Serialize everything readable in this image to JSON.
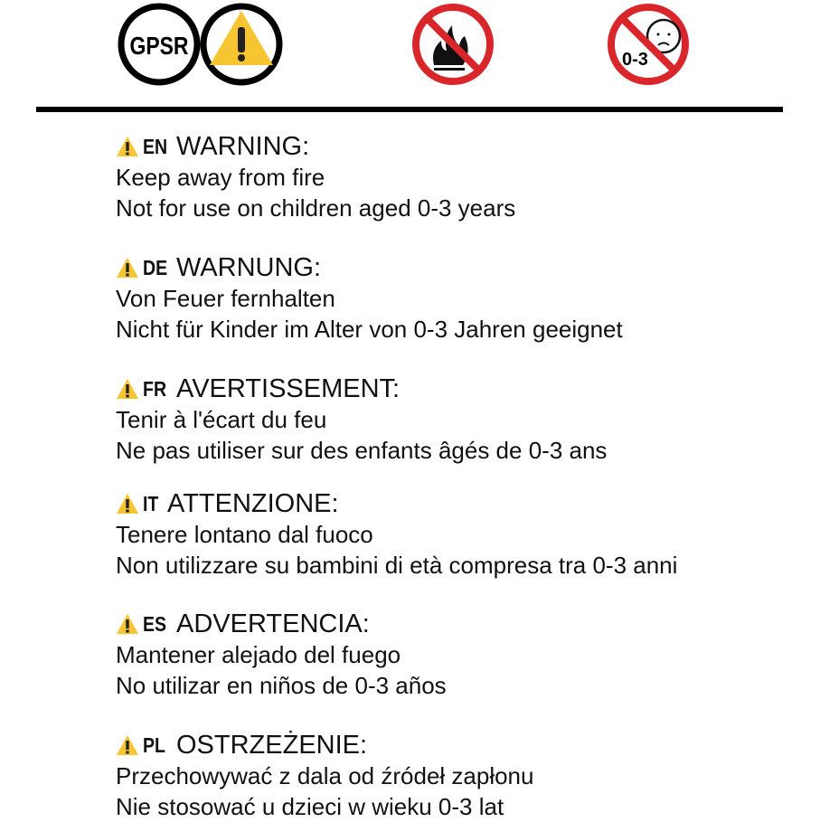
{
  "header_icons": {
    "gpsr_label": "GPSR",
    "icons": [
      "gpsr-badge-icon",
      "warning-triangle-icon",
      "no-fire-icon",
      "not-for-children-0-3-icon"
    ],
    "age_label": "0-3",
    "colors": {
      "warning_yellow": "#f7c531",
      "prohibition_red": "#d9262b",
      "black": "#000000"
    }
  },
  "sections": [
    {
      "code": "EN",
      "title": "WARNING:",
      "lines": [
        "Keep away from fire",
        "Not for use on children aged 0-3 years"
      ]
    },
    {
      "code": "DE",
      "title": "WARNUNG:",
      "lines": [
        "Von Feuer fernhalten",
        "Nicht für Kinder im Alter von 0-3 Jahren geeignet"
      ]
    },
    {
      "code": "FR",
      "title": "AVERTISSEMENT:",
      "lines": [
        "Tenir à l'écart du feu",
        "Ne pas utiliser sur des enfants âgés de 0-3 ans"
      ]
    },
    {
      "code": "IT",
      "title": "ATTENZIONE:",
      "lines": [
        "Tenere lontano dal fuoco",
        "Non utilizzare su bambini di età compresa tra 0-3 anni"
      ]
    },
    {
      "code": "ES",
      "title": "ADVERTENCIA:",
      "lines": [
        "Mantener alejado del fuego",
        "No utilizar en niños de 0-3 años"
      ]
    },
    {
      "code": "PL",
      "title": "OSTRZEŻENIE:",
      "lines": [
        "Przechowywać z dala od źródeł zapłonu",
        "Nie stosować u dzieci w wieku 0-3 lat"
      ]
    }
  ]
}
